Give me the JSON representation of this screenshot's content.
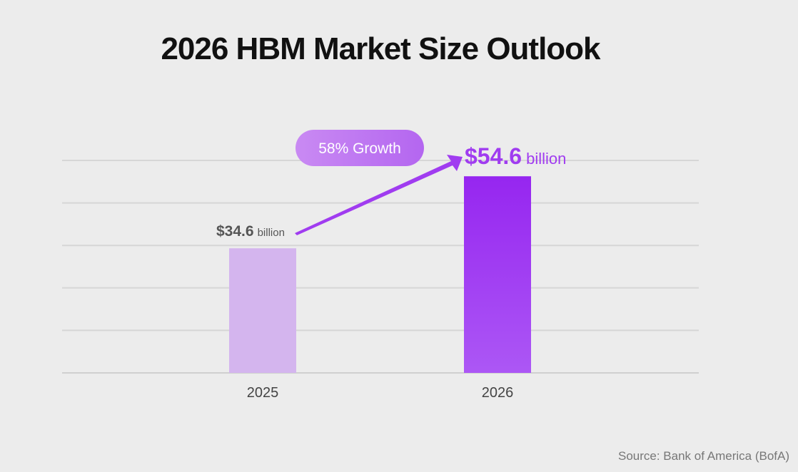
{
  "chart_data": {
    "type": "bar",
    "title": "2026 HBM Market Size Outlook",
    "categories": [
      "2025",
      "2026"
    ],
    "values": [
      34.6,
      54.6
    ],
    "value_labels": [
      {
        "amount": "$34.6",
        "unit": "billion"
      },
      {
        "amount": "$54.6",
        "unit": "billion"
      }
    ],
    "unit": "billion USD",
    "xlabel": "",
    "ylabel": "",
    "ylim": [
      0,
      59
    ],
    "grid": true,
    "grid_lines": 5,
    "annotation": "58% Growth",
    "colors": {
      "bar_2025": "#d4b5ee",
      "bar_2026_top": "#9626f0",
      "bar_2026_bottom": "#ac57f5",
      "accent": "#a03cf0",
      "label_2025": "#555555"
    }
  },
  "source": "Source: Bank of America (BofA)"
}
